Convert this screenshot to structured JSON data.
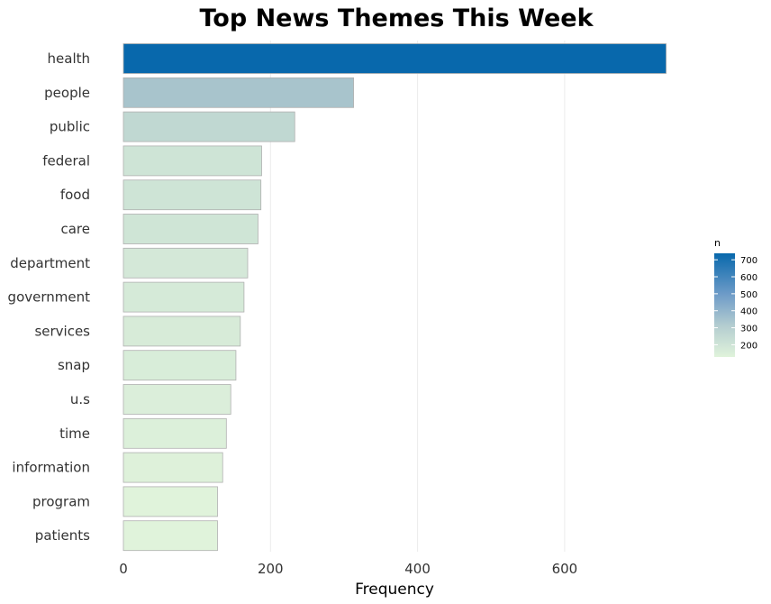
{
  "chart_data": {
    "type": "bar",
    "orientation": "horizontal",
    "title": "Top News Themes This Week",
    "xlabel": "Frequency",
    "ylabel": "",
    "categories": [
      "health",
      "people",
      "public",
      "federal",
      "food",
      "care",
      "department",
      "government",
      "services",
      "snap",
      "u.s",
      "time",
      "information",
      "program",
      "patients"
    ],
    "values": [
      738,
      313,
      233,
      188,
      187,
      183,
      169,
      164,
      159,
      153,
      146,
      140,
      135,
      128,
      128
    ],
    "xlim": [
      0,
      738
    ],
    "xticks": [
      0,
      200,
      400,
      600
    ],
    "grid": true,
    "legend": {
      "title": "n",
      "position": "right",
      "ticks": [
        200,
        300,
        400,
        500,
        600,
        700
      ],
      "min": 128,
      "max": 738
    },
    "colors": {
      "low": "#e0f3db",
      "mid": "#a9c4cc",
      "high": "#0868ac",
      "bar_border": "#b0b0b0",
      "grid": "#ebebeb"
    }
  }
}
